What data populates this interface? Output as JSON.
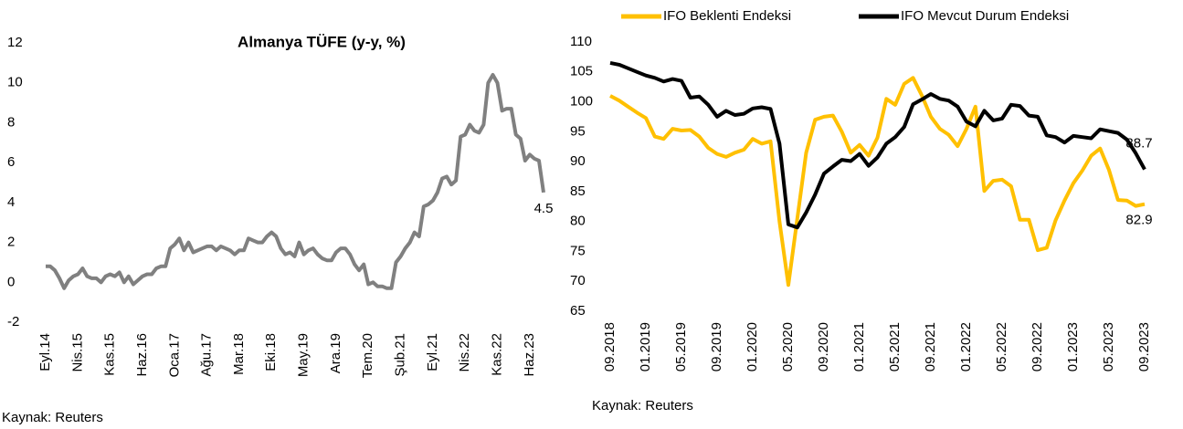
{
  "chart_data": [
    {
      "type": "line",
      "title": "Almanya TÜFE (y-y, %)",
      "source": "Kaynak: Reuters",
      "categories": [
        "Eyl.14",
        null,
        null,
        null,
        null,
        null,
        null,
        "Nis.15",
        null,
        null,
        null,
        null,
        null,
        null,
        "Kas.15",
        null,
        null,
        null,
        null,
        null,
        null,
        "Haz.16",
        null,
        null,
        null,
        null,
        null,
        null,
        "Oca.17",
        null,
        null,
        null,
        null,
        null,
        null,
        "Ağu.17",
        null,
        null,
        null,
        null,
        null,
        null,
        "Mar.18",
        null,
        null,
        null,
        null,
        null,
        null,
        "Eki.18",
        null,
        null,
        null,
        null,
        null,
        null,
        "May.19",
        null,
        null,
        null,
        null,
        null,
        null,
        "Ara.19",
        null,
        null,
        null,
        null,
        null,
        null,
        "Tem.20",
        null,
        null,
        null,
        null,
        null,
        null,
        "Şub.21",
        null,
        null,
        null,
        null,
        null,
        null,
        "Eyl.21",
        null,
        null,
        null,
        null,
        null,
        null,
        "Nis.22",
        null,
        null,
        null,
        null,
        null,
        null,
        "Kas.22",
        null,
        null,
        null,
        null,
        null,
        null,
        "Haz.23",
        null,
        null,
        null
      ],
      "values": [
        0.8,
        0.8,
        0.6,
        0.2,
        -0.3,
        0.1,
        0.3,
        0.4,
        0.7,
        0.3,
        0.2,
        0.2,
        0.0,
        0.3,
        0.4,
        0.3,
        0.5,
        0.0,
        0.3,
        -0.1,
        0.1,
        0.3,
        0.4,
        0.4,
        0.7,
        0.8,
        0.8,
        1.7,
        1.9,
        2.2,
        1.6,
        2.0,
        1.5,
        1.6,
        1.7,
        1.8,
        1.8,
        1.6,
        1.8,
        1.7,
        1.6,
        1.4,
        1.6,
        1.6,
        2.2,
        2.1,
        2.0,
        2.0,
        2.3,
        2.5,
        2.3,
        1.7,
        1.4,
        1.5,
        1.3,
        2.0,
        1.4,
        1.6,
        1.7,
        1.4,
        1.2,
        1.1,
        1.1,
        1.5,
        1.7,
        1.7,
        1.4,
        0.9,
        0.6,
        0.9,
        -0.1,
        0.0,
        -0.2,
        -0.2,
        -0.3,
        -0.3,
        1.0,
        1.3,
        1.7,
        2.0,
        2.5,
        2.3,
        3.8,
        3.9,
        4.1,
        4.5,
        5.2,
        5.3,
        4.9,
        5.1,
        7.3,
        7.4,
        7.9,
        7.6,
        7.5,
        7.9,
        10.0,
        10.4,
        10.0,
        8.6,
        8.7,
        8.7,
        7.4,
        7.2,
        6.1,
        6.4,
        6.2,
        6.1,
        4.5
      ],
      "color": "#808080",
      "data_labels": "last",
      "ylim": [
        -2,
        12
      ],
      "yticks": [
        -2,
        0,
        2,
        4,
        6,
        8,
        10,
        12
      ],
      "grid": false
    },
    {
      "type": "line",
      "source": "Kaynak: Reuters",
      "categories": [
        "09.2018",
        null,
        null,
        null,
        "01.2019",
        null,
        null,
        null,
        "05.2019",
        null,
        null,
        null,
        "09.2019",
        null,
        null,
        null,
        "01.2020",
        null,
        null,
        null,
        "05.2020",
        null,
        null,
        null,
        "09.2020",
        null,
        null,
        null,
        "01.2021",
        null,
        null,
        null,
        "05.2021",
        null,
        null,
        null,
        "09.2021",
        null,
        null,
        null,
        "01.2022",
        null,
        null,
        null,
        "05.2022",
        null,
        null,
        null,
        "09.2022",
        null,
        null,
        null,
        "01.2023",
        null,
        null,
        null,
        "05.2023",
        null,
        null,
        null,
        "09.2023"
      ],
      "series": [
        {
          "name": "IFO Beklenti Endeksi",
          "color": "#ffc000",
          "values": [
            101.0,
            100.2,
            99.2,
            98.2,
            97.3,
            94.2,
            93.8,
            95.5,
            95.2,
            95.3,
            94.2,
            92.3,
            91.3,
            90.8,
            91.5,
            92.0,
            93.8,
            93.0,
            93.4,
            80.0,
            69.4,
            80.5,
            91.5,
            97.0,
            97.5,
            97.7,
            95.0,
            91.5,
            92.8,
            91.0,
            94.0,
            100.5,
            99.5,
            103.0,
            104.0,
            101.0,
            97.5,
            95.5,
            94.5,
            92.6,
            95.5,
            99.2,
            85.1,
            86.8,
            87.0,
            85.9,
            80.3,
            80.3,
            75.2,
            75.6,
            80.2,
            83.5,
            86.4,
            88.5,
            91.0,
            92.2,
            88.6,
            83.6,
            83.5,
            82.6,
            82.9
          ]
        },
        {
          "name": "IFO Mevcut Durum Endeksi",
          "color": "#000000",
          "values": [
            106.5,
            106.2,
            105.6,
            105.0,
            104.4,
            104.0,
            103.4,
            103.8,
            103.5,
            100.7,
            100.9,
            99.5,
            97.5,
            98.5,
            97.8,
            98.0,
            98.9,
            99.1,
            98.8,
            93.0,
            79.5,
            79.0,
            81.5,
            84.5,
            88.0,
            89.2,
            90.3,
            90.1,
            91.3,
            89.3,
            90.7,
            93.0,
            94.1,
            95.8,
            99.6,
            100.4,
            101.3,
            100.5,
            100.2,
            99.2,
            96.7,
            95.9,
            98.5,
            96.9,
            97.2,
            99.5,
            99.3,
            97.7,
            97.5,
            94.4,
            94.1,
            93.2,
            94.3,
            94.1,
            93.9,
            95.4,
            95.1,
            94.8,
            93.7,
            91.4,
            88.7
          ]
        }
      ],
      "data_labels": "last",
      "legend": "top",
      "ylim": [
        65,
        110
      ],
      "yticks": [
        65,
        70,
        75,
        80,
        85,
        90,
        95,
        100,
        105,
        110
      ],
      "grid": false
    }
  ]
}
